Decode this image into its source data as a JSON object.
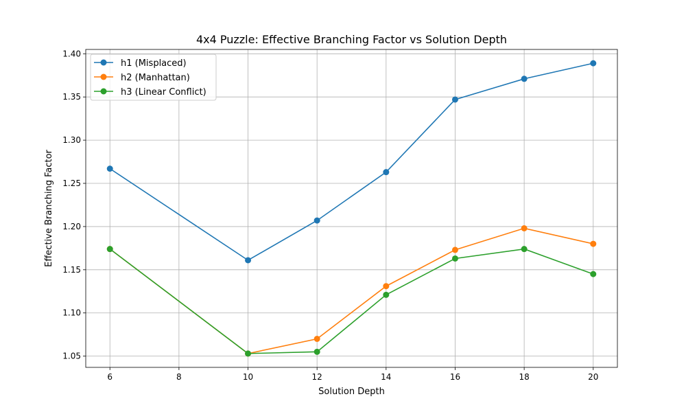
{
  "chart_data": {
    "type": "line",
    "title": "4x4 Puzzle: Effective Branching Factor vs Solution Depth",
    "xlabel": "Solution Depth",
    "ylabel": "Effective Branching Factor",
    "xlim": [
      5.3,
      20.7
    ],
    "ylim": [
      1.037,
      1.405
    ],
    "xticks": [
      6,
      8,
      10,
      12,
      14,
      16,
      18,
      20
    ],
    "yticks": [
      1.05,
      1.1,
      1.15,
      1.2,
      1.25,
      1.3,
      1.35,
      1.4
    ],
    "ytick_labels": [
      "1.05",
      "1.10",
      "1.15",
      "1.20",
      "1.25",
      "1.30",
      "1.35",
      "1.40"
    ],
    "grid": true,
    "legend_position": "top-left",
    "x": [
      6,
      10,
      12,
      14,
      16,
      18,
      20
    ],
    "series": [
      {
        "name": "h1 (Misplaced)",
        "color": "#1f77b4",
        "values": [
          1.267,
          1.161,
          1.207,
          1.263,
          1.347,
          1.371,
          1.389
        ]
      },
      {
        "name": "h2 (Manhattan)",
        "color": "#ff7f0e",
        "values": [
          1.174,
          1.053,
          1.07,
          1.131,
          1.173,
          1.198,
          1.18
        ]
      },
      {
        "name": "h3 (Linear Conflict)",
        "color": "#2ca02c",
        "values": [
          1.174,
          1.053,
          1.055,
          1.121,
          1.163,
          1.174,
          1.145
        ]
      }
    ]
  }
}
